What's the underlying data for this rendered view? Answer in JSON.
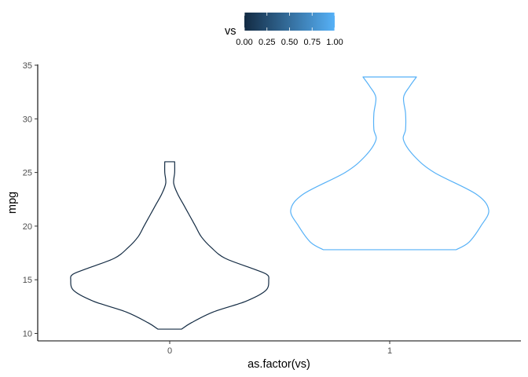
{
  "chart_data": {
    "type": "violin",
    "xlabel": "as.factor(vs)",
    "ylabel": "mpg",
    "categories": [
      "0",
      "1"
    ],
    "ylim": [
      9.6,
      34.9
    ],
    "yticks": [
      10,
      15,
      20,
      25,
      30,
      35
    ],
    "grid": false,
    "colorbar": {
      "title": "vs",
      "position": "top",
      "range": [
        0,
        1
      ],
      "tick_values": [
        0,
        0.25,
        0.5,
        0.75,
        1
      ],
      "tick_labels": [
        "0.00",
        "0.25",
        "0.50",
        "0.75",
        "1.00"
      ],
      "low_color": "#132B43",
      "high_color": "#56B1F7"
    },
    "series": [
      {
        "category": "0",
        "vs": 0,
        "color": "#132B43",
        "min": 10.4,
        "max": 26.0,
        "density_profile": [
          [
            10.4,
            0.12
          ],
          [
            11.0,
            0.22
          ],
          [
            12.0,
            0.44
          ],
          [
            13.0,
            0.77
          ],
          [
            14.0,
            0.97
          ],
          [
            15.0,
            1.0
          ],
          [
            15.5,
            0.98
          ],
          [
            16.0,
            0.85
          ],
          [
            17.0,
            0.56
          ],
          [
            18.0,
            0.42
          ],
          [
            19.0,
            0.32
          ],
          [
            20.0,
            0.26
          ],
          [
            21.0,
            0.2
          ],
          [
            22.0,
            0.14
          ],
          [
            23.0,
            0.08
          ],
          [
            24.0,
            0.04
          ],
          [
            25.0,
            0.05
          ],
          [
            26.0,
            0.05
          ]
        ]
      },
      {
        "category": "1",
        "vs": 1,
        "color": "#56B1F7",
        "min": 17.8,
        "max": 33.9,
        "density_profile": [
          [
            17.8,
            0.67
          ],
          [
            18.5,
            0.8
          ],
          [
            20.0,
            0.92
          ],
          [
            21.5,
            1.0
          ],
          [
            23.0,
            0.87
          ],
          [
            25.0,
            0.45
          ],
          [
            26.5,
            0.25
          ],
          [
            28.0,
            0.14
          ],
          [
            29.0,
            0.16
          ],
          [
            30.5,
            0.16
          ],
          [
            32.0,
            0.14
          ],
          [
            33.0,
            0.2
          ],
          [
            33.9,
            0.27
          ]
        ]
      }
    ]
  }
}
